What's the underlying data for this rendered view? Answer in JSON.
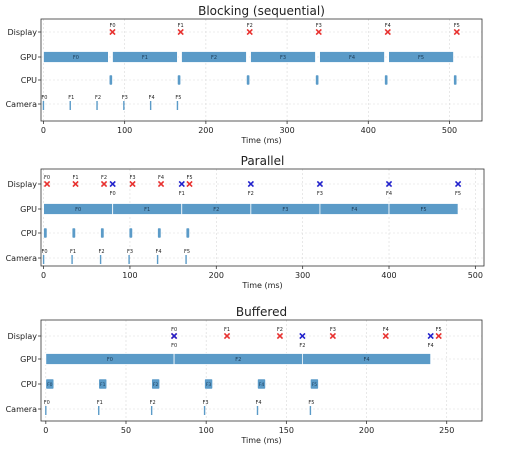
{
  "chart_data": [
    {
      "type": "timeline",
      "title": "Blocking (sequential)",
      "xlabel": "Time (ms)",
      "xlim": [
        -3,
        540
      ],
      "xticks": [
        0,
        100,
        200,
        300,
        400,
        500
      ],
      "rows": [
        "Display",
        "GPU",
        "CPU",
        "Camera"
      ],
      "camera": [
        {
          "label": "F0",
          "t": 0
        },
        {
          "label": "F1",
          "t": 33
        },
        {
          "label": "F2",
          "t": 66
        },
        {
          "label": "F3",
          "t": 99
        },
        {
          "label": "F4",
          "t": 132
        },
        {
          "label": "F5",
          "t": 165
        }
      ],
      "cpu": [
        {
          "start": 81,
          "end": 85
        },
        {
          "start": 165,
          "end": 169
        },
        {
          "start": 250,
          "end": 254
        },
        {
          "start": 335,
          "end": 339
        },
        {
          "start": 420,
          "end": 424
        },
        {
          "start": 505,
          "end": 509
        }
      ],
      "gpu": [
        {
          "label": "F0",
          "start": 0,
          "end": 80
        },
        {
          "label": "F1",
          "start": 85,
          "end": 165
        },
        {
          "label": "F2",
          "start": 170,
          "end": 250
        },
        {
          "label": "F3",
          "start": 255,
          "end": 335
        },
        {
          "label": "F4",
          "start": 340,
          "end": 420
        },
        {
          "label": "F5",
          "start": 425,
          "end": 505
        }
      ],
      "display_red": [
        {
          "label": "F0",
          "t": 85
        },
        {
          "label": "F1",
          "t": 169
        },
        {
          "label": "F2",
          "t": 254
        },
        {
          "label": "F3",
          "t": 339
        },
        {
          "label": "F4",
          "t": 424
        },
        {
          "label": "F5",
          "t": 509
        }
      ],
      "display_blue": []
    },
    {
      "type": "timeline",
      "title": "Parallel",
      "xlabel": "Time (ms)",
      "xlim": [
        -3,
        510
      ],
      "xticks": [
        0,
        100,
        200,
        300,
        400,
        500
      ],
      "rows": [
        "Display",
        "GPU",
        "CPU",
        "Camera"
      ],
      "camera": [
        {
          "label": "F0",
          "t": 0
        },
        {
          "label": "F1",
          "t": 33
        },
        {
          "label": "F2",
          "t": 66
        },
        {
          "label": "F3",
          "t": 99
        },
        {
          "label": "F4",
          "t": 132
        },
        {
          "label": "F5",
          "t": 165
        }
      ],
      "cpu": [
        {
          "start": 0,
          "end": 4
        },
        {
          "start": 33,
          "end": 37
        },
        {
          "start": 66,
          "end": 70
        },
        {
          "start": 99,
          "end": 103
        },
        {
          "start": 132,
          "end": 136
        },
        {
          "start": 165,
          "end": 169
        }
      ],
      "gpu": [
        {
          "label": "F0",
          "start": 0,
          "end": 80
        },
        {
          "label": "F1",
          "start": 80,
          "end": 160
        },
        {
          "label": "F2",
          "start": 160,
          "end": 240
        },
        {
          "label": "F3",
          "start": 240,
          "end": 320
        },
        {
          "label": "F4",
          "start": 320,
          "end": 400
        },
        {
          "label": "F5",
          "start": 400,
          "end": 480
        }
      ],
      "display_red": [
        {
          "label": "F0",
          "t": 4
        },
        {
          "label": "F1",
          "t": 37
        },
        {
          "label": "F2",
          "t": 70
        },
        {
          "label": "F3",
          "t": 103
        },
        {
          "label": "F4",
          "t": 136
        },
        {
          "label": "F5",
          "t": 169
        }
      ],
      "display_blue": [
        {
          "label": "F0",
          "t": 80
        },
        {
          "label": "F1",
          "t": 160
        },
        {
          "label": "F2",
          "t": 240
        },
        {
          "label": "F3",
          "t": 320
        },
        {
          "label": "F4",
          "t": 400
        },
        {
          "label": "F5",
          "t": 480
        }
      ]
    },
    {
      "type": "timeline",
      "title": "Buffered",
      "xlabel": "Time (ms)",
      "xlim": [
        -3,
        272
      ],
      "xticks": [
        0,
        50,
        100,
        150,
        200,
        250
      ],
      "rows": [
        "Display",
        "GPU",
        "CPU",
        "Camera"
      ],
      "camera": [
        {
          "label": "F0",
          "t": 0
        },
        {
          "label": "F1",
          "t": 33
        },
        {
          "label": "F2",
          "t": 66
        },
        {
          "label": "F3",
          "t": 99
        },
        {
          "label": "F4",
          "t": 132
        },
        {
          "label": "F5",
          "t": 165
        }
      ],
      "cpu": [
        {
          "label": "F0",
          "start": 0,
          "end": 5
        },
        {
          "label": "F1",
          "start": 33,
          "end": 38
        },
        {
          "label": "F2",
          "start": 66,
          "end": 71
        },
        {
          "label": "F3",
          "start": 99,
          "end": 104
        },
        {
          "label": "F4",
          "start": 132,
          "end": 137
        },
        {
          "label": "F5",
          "start": 165,
          "end": 170
        }
      ],
      "gpu": [
        {
          "label": "F0",
          "start": 0,
          "end": 80
        },
        {
          "label": "F2",
          "start": 80,
          "end": 160
        },
        {
          "label": "F4",
          "start": 160,
          "end": 240
        }
      ],
      "display_red": [
        {
          "label": "F0",
          "t": 80
        },
        {
          "label": "F1",
          "t": 113
        },
        {
          "label": "F2",
          "t": 146
        },
        {
          "label": "F3",
          "t": 179
        },
        {
          "label": "F4",
          "t": 212
        },
        {
          "label": "F5",
          "t": 245
        }
      ],
      "display_blue": [
        {
          "label": "F0",
          "t": 80
        },
        {
          "label": "F2",
          "t": 160
        },
        {
          "label": "F4",
          "t": 240
        }
      ]
    }
  ],
  "colors": {
    "bar": "#5b9bc8",
    "bar_edge": "#ffffff",
    "red": "#e8312f",
    "blue": "#2222cc",
    "grid": "#d9d9d9",
    "axis": "#333333",
    "text": "#222222"
  }
}
